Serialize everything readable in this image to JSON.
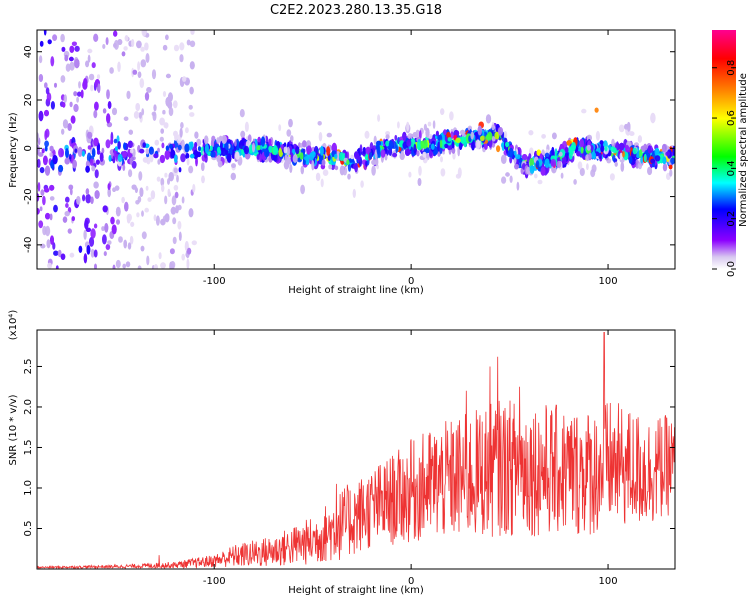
{
  "title": "C2E2.2023.280.13.35.G18",
  "chart_data": [
    {
      "type": "heatmap",
      "title": "C2E2.2023.280.13.35.G18",
      "xlabel": "Height of straight line (km)",
      "ylabel": "Frequency (Hz)",
      "xlim": [
        -190,
        134
      ],
      "ylim": [
        -50,
        49
      ],
      "x_ticks": [
        -100,
        0,
        100
      ],
      "y_ticks": [
        -40,
        -20,
        0,
        20,
        40
      ],
      "colorbar": {
        "label": "Normalized spectral amplitude",
        "range": [
          0,
          0.95
        ],
        "ticks": [
          0.0,
          0.2,
          0.4,
          0.6,
          0.8
        ],
        "colormap": [
          "#ffffff",
          "#b4a0e6",
          "#8c00ff",
          "#0000ff",
          "#00ffff",
          "#00ff00",
          "#ffff00",
          "#ff8000",
          "#ff0000",
          "#ff0090"
        ]
      },
      "ridge": {
        "x": [
          -160,
          -140,
          -120,
          -100,
          -80,
          -60,
          -40,
          -30,
          -20,
          -10,
          0,
          10,
          20,
          30,
          40,
          45,
          52,
          60,
          70,
          80,
          84,
          90,
          100,
          110,
          120,
          134
        ],
        "freq": [
          -3,
          -2,
          -2,
          -1,
          0,
          -2,
          -4,
          -6,
          -2,
          1,
          1,
          2,
          3,
          4,
          5,
          5,
          -3,
          -7,
          -5,
          -2,
          1,
          -1,
          -1,
          -2,
          -3,
          -4
        ]
      }
    },
    {
      "type": "line",
      "xlabel": "Height of straight line (km)",
      "ylabel": "SNR (10 * v/v)",
      "y_multiplier": "(x10⁴)",
      "xlim": [
        -190,
        134
      ],
      "ylim": [
        0,
        2.95
      ],
      "x_ticks": [
        -100,
        0,
        100
      ],
      "y_ticks": [
        0.5,
        1.0,
        1.5,
        2.0,
        2.5
      ],
      "y_tick_labels": [
        "0.5",
        "1.0",
        "1.5",
        "2.0",
        "2.5"
      ],
      "color": "#ee3333",
      "envelope": {
        "x": [
          -190,
          -150,
          -120,
          -100,
          -90,
          -70,
          -50,
          -35,
          -20,
          -5,
          10,
          30,
          45,
          60,
          80,
          95,
          100,
          110,
          120,
          134
        ],
        "mean": [
          0.02,
          0.03,
          0.05,
          0.1,
          0.16,
          0.22,
          0.35,
          0.55,
          0.75,
          0.9,
          1.05,
          1.15,
          1.25,
          1.25,
          1.2,
          1.2,
          1.3,
          1.25,
          1.2,
          1.3
        ],
        "spread": [
          0.01,
          0.02,
          0.04,
          0.08,
          0.14,
          0.2,
          0.3,
          0.45,
          0.5,
          0.6,
          0.7,
          0.8,
          0.85,
          0.85,
          0.8,
          0.8,
          0.8,
          0.75,
          0.7,
          0.6
        ]
      },
      "peaks": [
        {
          "x": -128,
          "y": 0.17
        },
        {
          "x": -38,
          "y": 1.05
        },
        {
          "x": 0,
          "y": 1.6
        },
        {
          "x": 28,
          "y": 2.2
        },
        {
          "x": 40,
          "y": 2.5
        },
        {
          "x": 44,
          "y": 2.62
        },
        {
          "x": 55,
          "y": 2.25
        },
        {
          "x": 98,
          "y": 2.92
        }
      ]
    }
  ]
}
